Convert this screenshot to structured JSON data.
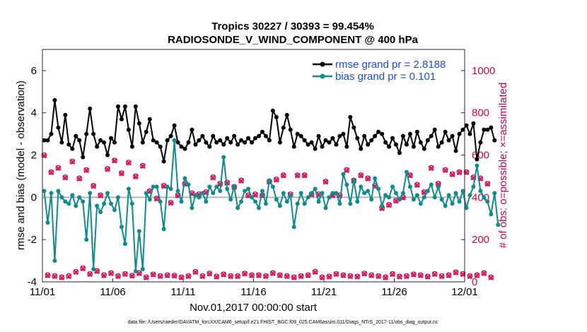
{
  "colors": {
    "rmse": "#000000",
    "bias": "#108a8a",
    "obs": "#d4145a",
    "zero_line": "#b4b4b4",
    "right_axis": "#c8064a",
    "legend_text": "#1a4ed8"
  },
  "chart_data": {
    "type": "line",
    "title": "Tropics 30227 / 30393 = 99.454%",
    "subtitle": "RADIOSONDE_V_WIND_COMPONENT @ 400 hPa",
    "xlabel": "Nov.01,2017 00:00:00 start",
    "ylabel": "rmse and bias (model - observation)",
    "y2label": "# of obs: o=possible; ×=assimilated",
    "footnote": "data file: /Users/raeder/DAI/ATM_forcXX/CAM6_setup/f.e21.FHIST_BGC.f09_025.CAM6assim.011/Diags_NTrS_2017-11/obs_diag_output.nc",
    "xlim": [
      0,
      30
    ],
    "ylim": [
      -4,
      7
    ],
    "y2lim": [
      0,
      1100
    ],
    "x_tick_values": [
      0,
      5,
      10,
      15,
      20,
      25,
      30
    ],
    "x_tick_labels": [
      "11/01",
      "11/06",
      "11/11",
      "11/16",
      "11/21",
      "11/26",
      "12/01"
    ],
    "y_tick_values": [
      -4,
      -2,
      0,
      2,
      4,
      6
    ],
    "y_tick_labels": [
      "-4",
      "-2",
      "0",
      "2",
      "4",
      "6"
    ],
    "y2_tick_values": [
      0,
      200,
      400,
      600,
      800,
      1000
    ],
    "y2_tick_labels": [
      "0",
      "200",
      "400",
      "600",
      "800",
      "1000"
    ],
    "x_step_days": 0.25,
    "series": [
      {
        "name": "rmse grand pr = 2.8188",
        "values": [
          2.7,
          2.7,
          3.0,
          4.6,
          3.3,
          2.6,
          3.9,
          2.5,
          2.3,
          2.9,
          2.7,
          1.9,
          3.0,
          4.2,
          3.0,
          2.4,
          2.7,
          2.6,
          2.0,
          2.8,
          2.6,
          4.3,
          3.7,
          4.3,
          3.2,
          2.4,
          4.3,
          3.5,
          2.6,
          3.1,
          3.7,
          2.7,
          2.6,
          2.4,
          1.7,
          2.7,
          2.9,
          3.4,
          2.6,
          2.4,
          2.3,
          2.6,
          3.2,
          2.5,
          2.7,
          2.9,
          2.6,
          2.4,
          2.9,
          2.6,
          2.7,
          2.5,
          2.8,
          2.6,
          2.9,
          2.5,
          2.7,
          2.6,
          2.8,
          2.6,
          2.8,
          2.9,
          3.1,
          2.9,
          2.7,
          4.1,
          3.8,
          2.6,
          3.3,
          3.9,
          3.2,
          2.4,
          3.0,
          2.9,
          2.7,
          2.5,
          2.6,
          2.3,
          2.9,
          2.4,
          2.7,
          2.6,
          2.8,
          2.5,
          2.9,
          3.0,
          2.4,
          3.8,
          3.3,
          2.8,
          2.3,
          2.9,
          2.5,
          2.7,
          2.9,
          3.1,
          3.0,
          2.6,
          2.4,
          2.8,
          2.5,
          2.1,
          2.9,
          2.5,
          3.0,
          2.4,
          3.1,
          2.6,
          2.3,
          2.7,
          2.9,
          3.2,
          2.4,
          2.6,
          3.1,
          2.7,
          2.9,
          2.2,
          3.0,
          3.2,
          3.4,
          3.0,
          3.5,
          1.8,
          2.6,
          3.2,
          3.2,
          3.3,
          2.7
        ]
      },
      {
        "name": "bias grand pr = 0.101",
        "values": [
          0.3,
          -1.2,
          0.2,
          -3.0,
          0.3,
          0.0,
          -0.2,
          -0.3,
          0.1,
          -0.4,
          0.0,
          -0.2,
          -2.0,
          0.2,
          -3.4,
          -0.4,
          -0.7,
          -0.3,
          0.2,
          -0.3,
          -0.6,
          0.0,
          -1.4,
          -2.2,
          0.4,
          -0.3,
          -3.5,
          -1.6,
          -3.4,
          0.2,
          -0.1,
          0.5,
          0.5,
          -0.2,
          -1.5,
          0.5,
          0.4,
          2.7,
          0.3,
          -0.2,
          0.9,
          0.6,
          -0.5,
          0.1,
          0.0,
          0.2,
          -0.2,
          0.5,
          0.2,
          0.5,
          0.3,
          1.9,
          0.4,
          -0.1,
          0.5,
          -0.5,
          -0.2,
          0.3,
          0.4,
          0.0,
          -0.2,
          -0.5,
          0.3,
          -0.3,
          0.8,
          0.5,
          -0.1,
          -0.4,
          0.2,
          -0.2,
          0.1,
          -1.4,
          -0.3,
          0.2,
          -0.3,
          0.0,
          0.2,
          0.4,
          -0.2,
          0.2,
          -0.5,
          0.0,
          0.2,
          0.2,
          -0.3,
          1.1,
          0.6,
          -0.3,
          0.8,
          -0.2,
          0.5,
          0.2,
          0.3,
          -0.1,
          0.9,
          0.4,
          -0.4,
          0.1,
          0.0,
          0.5,
          0.2,
          -0.1,
          0.2,
          1.2,
          0.5,
          -0.1,
          0.1,
          -0.3,
          0.0,
          0.3,
          0.6,
          0.0,
          0.5,
          -0.1,
          -0.4,
          0.1,
          -0.3,
          0.2,
          -0.2,
          0.3,
          -0.5,
          0.1,
          0.5,
          1.5,
          0.3,
          0.0,
          -0.2,
          -0.8,
          0.2,
          -1.3
        ]
      },
      {
        "name": "possible obs",
        "values": [
          600,
          32,
          520,
          28,
          540,
          22,
          495,
          28,
          570,
          48,
          490,
          65,
          530,
          38,
          455,
          52,
          410,
          32,
          535,
          42,
          575,
          28,
          515,
          38,
          565,
          30,
          500,
          42,
          550,
          22,
          430,
          36,
          395,
          28,
          455,
          32,
          375,
          30,
          410,
          22,
          465,
          28,
          420,
          48,
          415,
          28,
          425,
          40,
          495,
          26,
          465,
          36,
          470,
          28,
          450,
          28,
          480,
          40,
          410,
          32,
          415,
          32,
          410,
          28,
          475,
          42,
          485,
          32,
          505,
          28,
          415,
          22,
          505,
          28,
          505,
          32,
          415,
          48,
          415,
          22,
          475,
          26,
          410,
          38,
          410,
          32,
          530,
          28,
          480,
          26,
          505,
          40,
          490,
          32,
          455,
          28,
          350,
          22,
          365,
          38,
          385,
          26,
          400,
          28,
          505,
          36,
          460,
          32,
          425,
          26,
          540,
          38,
          465,
          28,
          530,
          32,
          510,
          46,
          520,
          38,
          520,
          28,
          495,
          32,
          490,
          42,
          465,
          22
        ]
      },
      {
        "name": "assimilated obs",
        "values": [
          597,
          30,
          518,
          26,
          538,
          20,
          493,
          26,
          568,
          46,
          488,
          63,
          528,
          36,
          453,
          50,
          408,
          30,
          533,
          40,
          573,
          26,
          513,
          36,
          563,
          28,
          498,
          40,
          548,
          20,
          428,
          34,
          393,
          26,
          453,
          30,
          373,
          28,
          408,
          20,
          463,
          26,
          418,
          46,
          413,
          26,
          423,
          38,
          493,
          24,
          463,
          34,
          468,
          26,
          448,
          26,
          478,
          38,
          408,
          30,
          413,
          30,
          408,
          26,
          473,
          40,
          483,
          30,
          503,
          26,
          413,
          20,
          503,
          26,
          503,
          30,
          413,
          46,
          413,
          20,
          473,
          24,
          408,
          36,
          408,
          30,
          528,
          26,
          478,
          24,
          503,
          38,
          488,
          30,
          453,
          26,
          348,
          20,
          363,
          36,
          383,
          24,
          398,
          26,
          503,
          34,
          458,
          30,
          423,
          24,
          538,
          36,
          463,
          26,
          528,
          30,
          508,
          44,
          518,
          36,
          518,
          26,
          493,
          30,
          488,
          40,
          463,
          20
        ]
      }
    ]
  }
}
